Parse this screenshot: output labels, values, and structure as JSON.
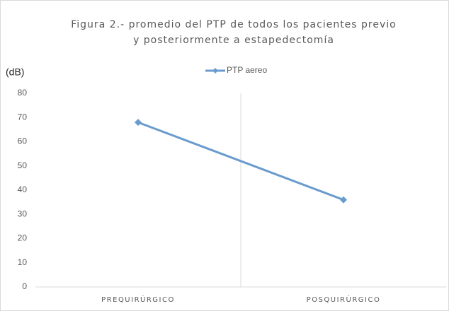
{
  "chart_data": {
    "type": "line",
    "title": [
      "Figura 2.- promedio del PTP de todos los pacientes previo",
      "y posteriormente a estapedectomía"
    ],
    "y_label": "(dB)",
    "categories": [
      "PREQUIRÚRGICO",
      "POSQUIRÚRGICO"
    ],
    "series": [
      {
        "name": "PTP aereo",
        "color": "#6a9bcf",
        "values": [
          68,
          36
        ]
      }
    ],
    "ylim": [
      0,
      80
    ],
    "yticks": [
      0,
      10,
      20,
      30,
      40,
      50,
      60,
      70,
      80
    ],
    "grid": false,
    "legend": "top"
  }
}
